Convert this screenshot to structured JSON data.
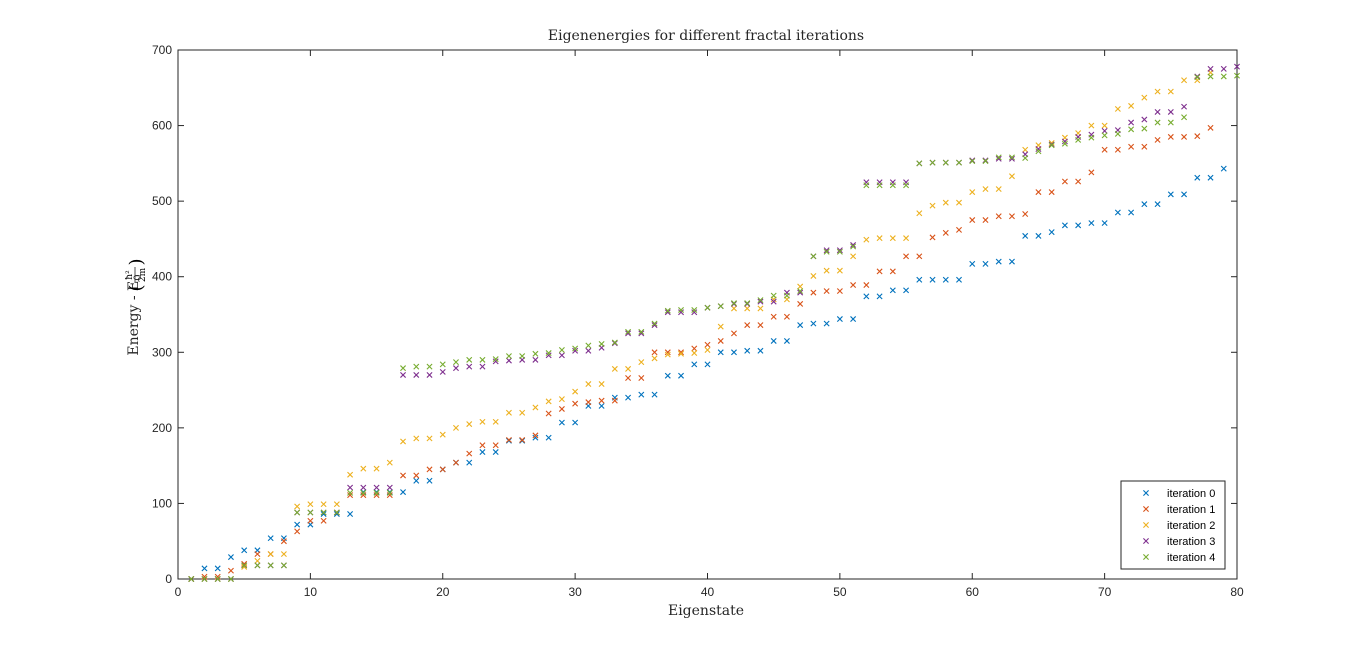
{
  "chart_data": {
    "type": "scatter",
    "title": "Eigenenergies for different fractal iterations",
    "xlabel": "Eigenstate",
    "ylabel": "Energy - E",
    "ylabel_sub": "0",
    "ylabel_frac_num": "ħ²",
    "ylabel_frac_den": "2m",
    "xlim": [
      0,
      80
    ],
    "ylim": [
      0,
      700
    ],
    "xticks": [
      0,
      10,
      20,
      30,
      40,
      50,
      60,
      70,
      80
    ],
    "yticks": [
      0,
      100,
      200,
      300,
      400,
      500,
      600,
      700
    ],
    "grid": false,
    "legend_position": "bottom-right",
    "marker": "x",
    "series": [
      {
        "name": "iteration 0",
        "color": "#0072BD",
        "values": [
          0,
          14,
          14,
          29,
          38,
          38,
          54,
          54,
          72,
          72,
          86,
          86,
          86,
          115,
          115,
          115,
          115,
          130,
          130,
          145,
          154,
          154,
          168,
          168,
          183,
          183,
          187,
          187,
          207,
          207,
          229,
          229,
          240,
          240,
          244,
          244,
          269,
          269,
          284,
          284,
          300,
          300,
          302,
          302,
          315,
          315,
          336,
          338,
          338,
          344,
          344,
          374,
          374,
          382,
          382,
          396,
          396,
          396,
          396,
          417,
          417,
          420,
          420,
          454,
          454,
          459,
          468,
          468,
          471,
          471,
          485,
          485,
          496,
          496,
          509,
          509,
          531,
          531,
          543
        ]
      },
      {
        "name": "iteration 1",
        "color": "#D95319",
        "values": [
          0,
          3,
          3,
          11,
          20,
          33,
          33,
          50,
          63,
          77,
          77,
          88,
          111,
          111,
          111,
          111,
          137,
          137,
          145,
          145,
          154,
          166,
          177,
          177,
          184,
          184,
          190,
          219,
          225,
          232,
          234,
          236,
          236,
          266,
          266,
          300,
          300,
          300,
          305,
          310,
          315,
          325,
          336,
          336,
          347,
          347,
          364,
          379,
          381,
          381,
          389,
          389,
          407,
          407,
          427,
          427,
          452,
          458,
          462,
          475,
          475,
          480,
          480,
          483,
          512,
          512,
          526,
          526,
          538,
          568,
          568,
          572,
          572,
          581,
          585,
          585,
          586,
          597
        ]
      },
      {
        "name": "iteration 2",
        "color": "#EDB120",
        "values": [
          0,
          0,
          0,
          0,
          16,
          24,
          33,
          33,
          96,
          99,
          99,
          99,
          138,
          146,
          146,
          154,
          182,
          186,
          186,
          191,
          200,
          205,
          208,
          208,
          220,
          220,
          227,
          235,
          238,
          248,
          258,
          258,
          278,
          278,
          287,
          292,
          297,
          298,
          299,
          303,
          334,
          358,
          358,
          358,
          370,
          370,
          387,
          401,
          408,
          408,
          427,
          449,
          451,
          451,
          451,
          484,
          494,
          498,
          498,
          512,
          516,
          516,
          533,
          568,
          574,
          577,
          584,
          590,
          600,
          600,
          622,
          626,
          637,
          645,
          645,
          660,
          660,
          670
        ]
      },
      {
        "name": "iteration 3",
        "color": "#7E2F8E",
        "values": [
          0,
          0,
          0,
          0,
          18,
          18,
          18,
          18,
          88,
          88,
          88,
          88,
          121,
          121,
          121,
          121,
          270,
          270,
          270,
          274,
          279,
          281,
          281,
          288,
          289,
          290,
          290,
          296,
          296,
          302,
          302,
          306,
          312,
          325,
          325,
          336,
          353,
          353,
          353,
          359,
          361,
          364,
          364,
          367,
          367,
          379,
          379,
          427,
          435,
          435,
          442,
          525,
          525,
          525,
          525,
          550,
          551,
          551,
          551,
          554,
          554,
          556,
          556,
          562,
          569,
          575,
          579,
          585,
          588,
          593,
          594,
          604,
          608,
          618,
          618,
          625,
          665,
          675,
          675,
          678
        ]
      },
      {
        "name": "iteration 4",
        "color": "#77AC30",
        "values": [
          0,
          0,
          0,
          0,
          18,
          18,
          18,
          18,
          88,
          88,
          88,
          88,
          114,
          114,
          114,
          114,
          279,
          281,
          281,
          284,
          287,
          290,
          290,
          291,
          295,
          295,
          298,
          299,
          303,
          305,
          309,
          311,
          313,
          327,
          327,
          338,
          355,
          356,
          356,
          359,
          361,
          365,
          365,
          369,
          375,
          375,
          381,
          427,
          433,
          433,
          440,
          521,
          521,
          521,
          521,
          550,
          551,
          551,
          551,
          553,
          553,
          558,
          558,
          557,
          566,
          574,
          576,
          581,
          584,
          587,
          589,
          595,
          596,
          604,
          604,
          611,
          664,
          665,
          665,
          666
        ]
      }
    ]
  },
  "legend": {
    "items": [
      "iteration 0",
      "iteration 1",
      "iteration 2",
      "iteration 3",
      "iteration 4"
    ]
  }
}
